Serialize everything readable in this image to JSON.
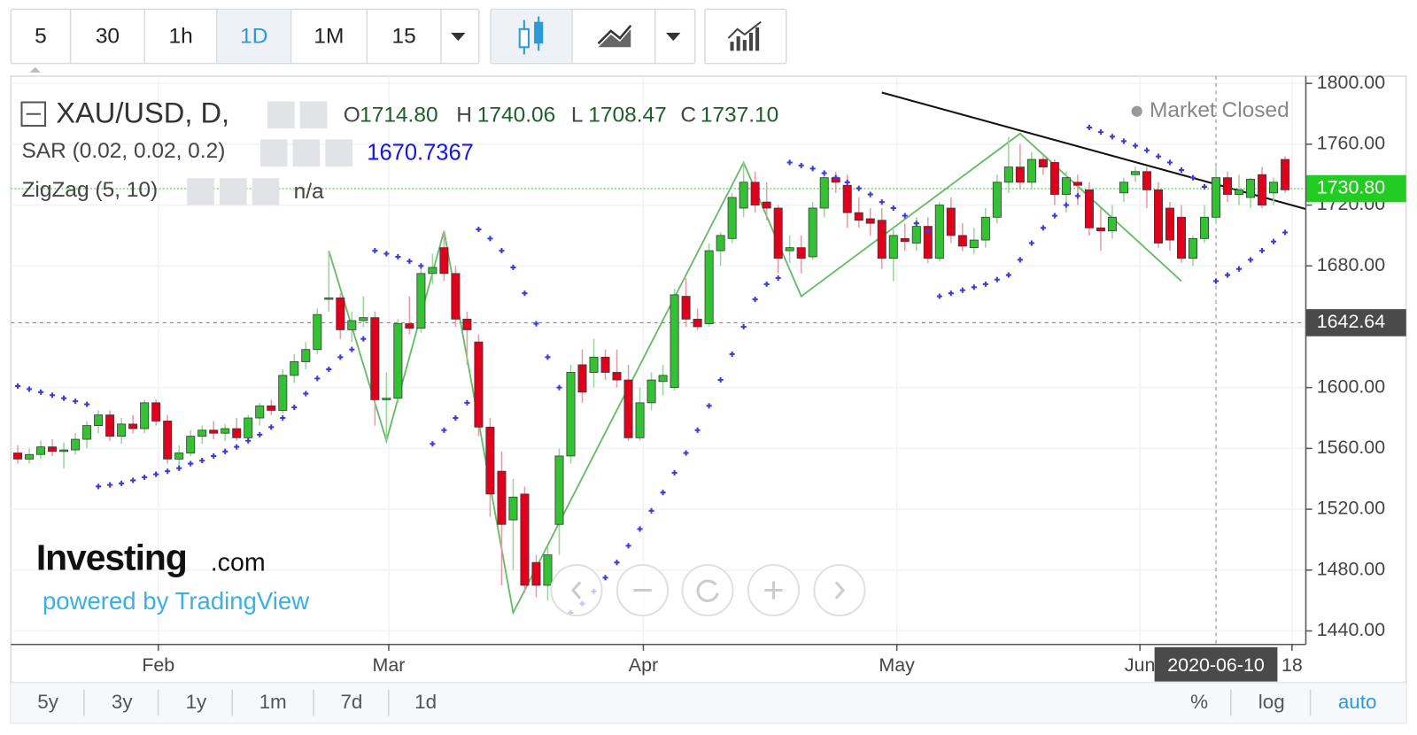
{
  "toolbar": {
    "intervals": [
      "5",
      "30",
      "1h",
      "1D",
      "1M",
      "15"
    ]
  },
  "legend": {
    "symbol": "XAU/USD, D,",
    "ohlc": [
      {
        "key": "O",
        "value": "1714.80"
      },
      {
        "key": "H",
        "value": "1740.06"
      },
      {
        "key": "L",
        "value": "1708.47"
      },
      {
        "key": "C",
        "value": "1737.10"
      }
    ],
    "sar_label": "SAR (0.02, 0.02, 0.2)",
    "sar_value": "1670.7367",
    "zigzag_label": "ZigZag (5, 10)",
    "zigzag_value": "n/a",
    "status": "Market Closed"
  },
  "watermark": {
    "brand": "Investing",
    "suffix": ".com",
    "powered": "powered by TradingView"
  },
  "ranges": [
    "5y",
    "3y",
    "1y",
    "1m",
    "7d",
    "1d"
  ],
  "scale_options": [
    "%",
    "log",
    "auto"
  ],
  "chart_data": {
    "type": "candlestick",
    "up_color": "#33c233",
    "down_color": "#e0001b",
    "open": [
      1557,
      1553,
      1556,
      1561,
      1558,
      1559,
      1566,
      1575,
      1582,
      1568,
      1576,
      1573,
      1590,
      1578,
      1553,
      1557,
      1568,
      1572,
      1570,
      1573,
      1567,
      1580,
      1588,
      1585,
      1608,
      1617,
      1625,
      1658,
      1659,
      1638,
      1644,
      1646,
      1592,
      1593,
      1642,
      1639,
      1675,
      1692,
      1675,
      1645,
      1630,
      1574,
      1545,
      1513,
      1530,
      1485,
      1470,
      1510,
      1555,
      1615,
      1610,
      1620,
      1610,
      1605,
      1567,
      1590,
      1604,
      1600,
      1660,
      1645,
      1642,
      1690,
      1698,
      1718,
      1735,
      1722,
      1718,
      1690,
      1692,
      1686,
      1718,
      1738,
      1733,
      1715,
      1711,
      1710,
      1685,
      1698,
      1695,
      1706,
      1685,
      1718,
      1700,
      1692,
      1697,
      1712,
      1735,
      1745,
      1735,
      1750,
      1748,
      1727,
      1735,
      1730,
      1705,
      1703,
      1728,
      1740,
      1742,
      1730,
      1718,
      1712,
      1685,
      1698,
      1712,
      1738,
      1727,
      1725,
      1740,
      1728,
      1750
    ],
    "high": [
      1562,
      1560,
      1565,
      1566,
      1564,
      1570,
      1578,
      1585,
      1585,
      1580,
      1582,
      1592,
      1592,
      1582,
      1562,
      1572,
      1575,
      1578,
      1576,
      1580,
      1582,
      1590,
      1592,
      1612,
      1622,
      1630,
      1652,
      1690,
      1662,
      1650,
      1660,
      1650,
      1610,
      1645,
      1660,
      1680,
      1688,
      1703,
      1680,
      1650,
      1635,
      1580,
      1558,
      1540,
      1535,
      1490,
      1495,
      1560,
      1615,
      1625,
      1632,
      1625,
      1625,
      1615,
      1600,
      1610,
      1615,
      1665,
      1672,
      1652,
      1695,
      1702,
      1728,
      1748,
      1742,
      1735,
      1720,
      1700,
      1700,
      1722,
      1740,
      1742,
      1740,
      1725,
      1718,
      1718,
      1705,
      1708,
      1712,
      1712,
      1722,
      1725,
      1708,
      1705,
      1718,
      1740,
      1765,
      1760,
      1755,
      1752,
      1750,
      1742,
      1740,
      1735,
      1718,
      1720,
      1738,
      1745,
      1745,
      1735,
      1722,
      1720,
      1700,
      1720,
      1745,
      1742,
      1740,
      1738,
      1745,
      1738,
      1752
    ],
    "low": [
      1550,
      1550,
      1553,
      1555,
      1547,
      1556,
      1560,
      1570,
      1565,
      1563,
      1570,
      1570,
      1575,
      1550,
      1548,
      1555,
      1563,
      1566,
      1565,
      1565,
      1564,
      1575,
      1582,
      1583,
      1603,
      1612,
      1622,
      1650,
      1632,
      1630,
      1640,
      1575,
      1565,
      1590,
      1635,
      1636,
      1668,
      1670,
      1640,
      1615,
      1568,
      1515,
      1470,
      1480,
      1465,
      1462,
      1460,
      1490,
      1550,
      1590,
      1600,
      1605,
      1600,
      1565,
      1565,
      1585,
      1595,
      1598,
      1640,
      1638,
      1640,
      1680,
      1695,
      1712,
      1715,
      1710,
      1675,
      1682,
      1675,
      1684,
      1712,
      1728,
      1705,
      1705,
      1700,
      1678,
      1670,
      1690,
      1690,
      1682,
      1683,
      1695,
      1690,
      1688,
      1692,
      1708,
      1728,
      1730,
      1730,
      1740,
      1720,
      1715,
      1720,
      1700,
      1690,
      1698,
      1722,
      1735,
      1718,
      1692,
      1690,
      1682,
      1680,
      1695,
      1708,
      1722,
      1720,
      1718,
      1718,
      1720,
      1728
    ],
    "close": [
      1553,
      1556,
      1561,
      1558,
      1559,
      1566,
      1575,
      1582,
      1568,
      1576,
      1573,
      1590,
      1578,
      1553,
      1557,
      1568,
      1572,
      1570,
      1573,
      1567,
      1580,
      1588,
      1585,
      1608,
      1617,
      1625,
      1648,
      1659,
      1638,
      1644,
      1646,
      1592,
      1593,
      1642,
      1639,
      1675,
      1679,
      1675,
      1645,
      1638,
      1574,
      1530,
      1510,
      1528,
      1470,
      1470,
      1490,
      1555,
      1610,
      1597,
      1620,
      1610,
      1605,
      1567,
      1590,
      1605,
      1608,
      1661,
      1645,
      1640,
      1690,
      1700,
      1725,
      1735,
      1720,
      1718,
      1685,
      1692,
      1685,
      1718,
      1738,
      1735,
      1715,
      1710,
      1708,
      1685,
      1700,
      1696,
      1706,
      1685,
      1720,
      1700,
      1693,
      1697,
      1712,
      1735,
      1745,
      1735,
      1750,
      1745,
      1727,
      1738,
      1733,
      1705,
      1703,
      1712,
      1735,
      1742,
      1730,
      1695,
      1697,
      1685,
      1698,
      1712,
      1738,
      1727,
      1730,
      1737,
      1720,
      1735,
      1730
    ],
    "sar": {
      "name": "SAR",
      "color": "#3b3bd6",
      "values": [
        1601,
        1599,
        1597,
        1595,
        1593,
        1591,
        1589,
        1535,
        1536,
        1537,
        1539,
        1541,
        1543,
        1545,
        1547,
        1550,
        1552,
        1555,
        1558,
        1561,
        1565,
        1569,
        1574,
        1580,
        1587,
        1596,
        1606,
        1612,
        1620,
        1625,
        1632,
        1690,
        1688,
        1686,
        1683,
        1680,
        1563,
        1572,
        1580,
        1590,
        1704,
        1698,
        1690,
        1679,
        1662,
        1642,
        1620,
        1600,
        1452,
        1458,
        1466,
        1475,
        1485,
        1496,
        1507,
        1519,
        1531,
        1544,
        1557,
        1572,
        1588,
        1605,
        1622,
        1640,
        1658,
        1668,
        1672,
        1748,
        1746,
        1744,
        1741,
        1738,
        1735,
        1731,
        1727,
        1722,
        1718,
        1713,
        1708,
        1703,
        1660,
        1662,
        1664,
        1666,
        1668,
        1671,
        1674,
        1684,
        1695,
        1705,
        1713,
        1720,
        1726,
        1771,
        1768,
        1765,
        1762,
        1759,
        1756,
        1752,
        1748,
        1743,
        1738,
        1732,
        1670,
        1674,
        1678,
        1684,
        1690,
        1696,
        1702
      ]
    },
    "zigzag": {
      "name": "ZigZag",
      "color": "#66bb66",
      "x": [
        27,
        32,
        37,
        43,
        63,
        68,
        87,
        101
      ],
      "y": [
        1690,
        1565,
        1703,
        1452,
        1748,
        1660,
        1767,
        1670
      ]
    },
    "trendline": {
      "color": "#111111",
      "x": [
        75,
        112
      ],
      "y": [
        1794,
        1717
      ]
    },
    "last_price": {
      "value": 1730.8,
      "label": "1730.80",
      "color": "#22cc22"
    },
    "crosshair": {
      "x": 104,
      "x_label": "2020-06-10",
      "y": {
        "value": 1642.64,
        "label": "1642.64"
      }
    },
    "xlim": [
      -0.6,
      111.8
    ],
    "xticks": [
      {
        "value": 12.2,
        "label": "Feb"
      },
      {
        "value": 32.2,
        "label": "Mar"
      },
      {
        "value": 54.3,
        "label": "Apr"
      },
      {
        "value": 76.3,
        "label": "May"
      },
      {
        "value": 97.4,
        "label": "Jun"
      },
      {
        "value": 110.6,
        "label": "18"
      }
    ],
    "ylim": [
      1431.1,
      1804.8
    ],
    "yticks": [
      {
        "value": 1440,
        "label": "1440.00"
      },
      {
        "value": 1480,
        "label": "1480.00"
      },
      {
        "value": 1520,
        "label": "1520.00"
      },
      {
        "value": 1560,
        "label": "1560.00"
      },
      {
        "value": 1600,
        "label": "1600.00"
      },
      {
        "value": 1640,
        "label": "1640.00"
      },
      {
        "value": 1680,
        "label": "1680.00"
      },
      {
        "value": 1720,
        "label": "1720.00"
      },
      {
        "value": 1760,
        "label": "1760.00"
      },
      {
        "value": 1800,
        "label": "1800.00"
      }
    ],
    "grid": true
  }
}
